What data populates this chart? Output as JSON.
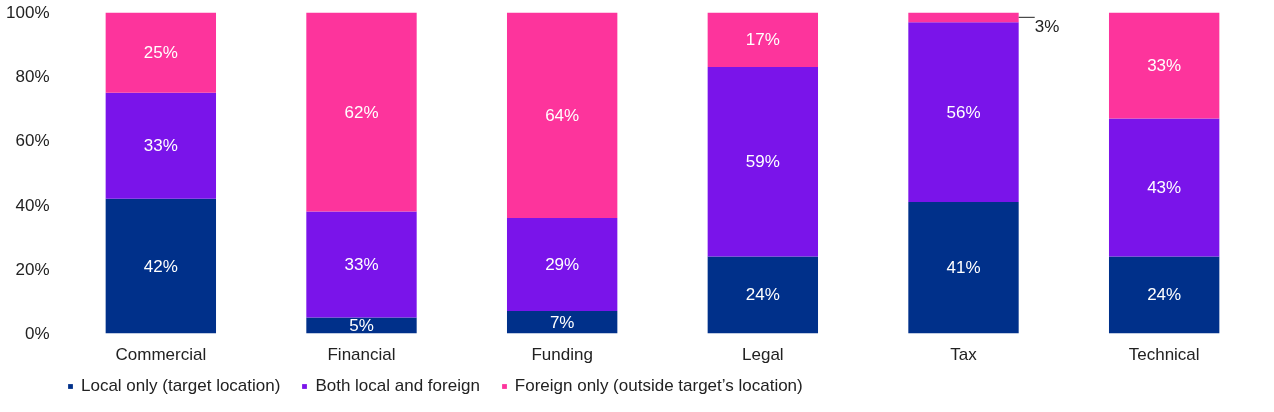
{
  "chart_data": {
    "type": "bar",
    "stacked": true,
    "categories": [
      "Commercial",
      "Financial",
      "Funding",
      "Legal",
      "Tax",
      "Technical"
    ],
    "series": [
      {
        "name": "Local only (target location)",
        "color": "#00308a",
        "values": [
          42,
          5,
          7,
          24,
          41,
          24
        ],
        "value_labels": [
          "42%",
          "5%",
          "7%",
          "24%",
          "41%",
          "24%"
        ]
      },
      {
        "name": "Both local and foreign",
        "color": "#7a14ea",
        "values": [
          33,
          33,
          29,
          59,
          56,
          43
        ],
        "value_labels": [
          "33%",
          "33%",
          "29%",
          "59%",
          "56%",
          "43%"
        ]
      },
      {
        "name": "Foreign only (outside target’s location)",
        "color": "#fd349c",
        "values": [
          25,
          62,
          64,
          17,
          3,
          33
        ],
        "value_labels": [
          "25%",
          "62%",
          "64%",
          "17%",
          "3%",
          "33%"
        ]
      }
    ],
    "ylim": [
      0,
      100
    ],
    "yticks": [
      {
        "value": 0,
        "label": "0%"
      },
      {
        "value": 20,
        "label": "20%"
      },
      {
        "value": 40,
        "label": "40%"
      },
      {
        "value": 60,
        "label": "60%"
      },
      {
        "value": 80,
        "label": "80%"
      },
      {
        "value": 100,
        "label": "100%"
      }
    ],
    "grid": false,
    "legend": "bottom"
  }
}
